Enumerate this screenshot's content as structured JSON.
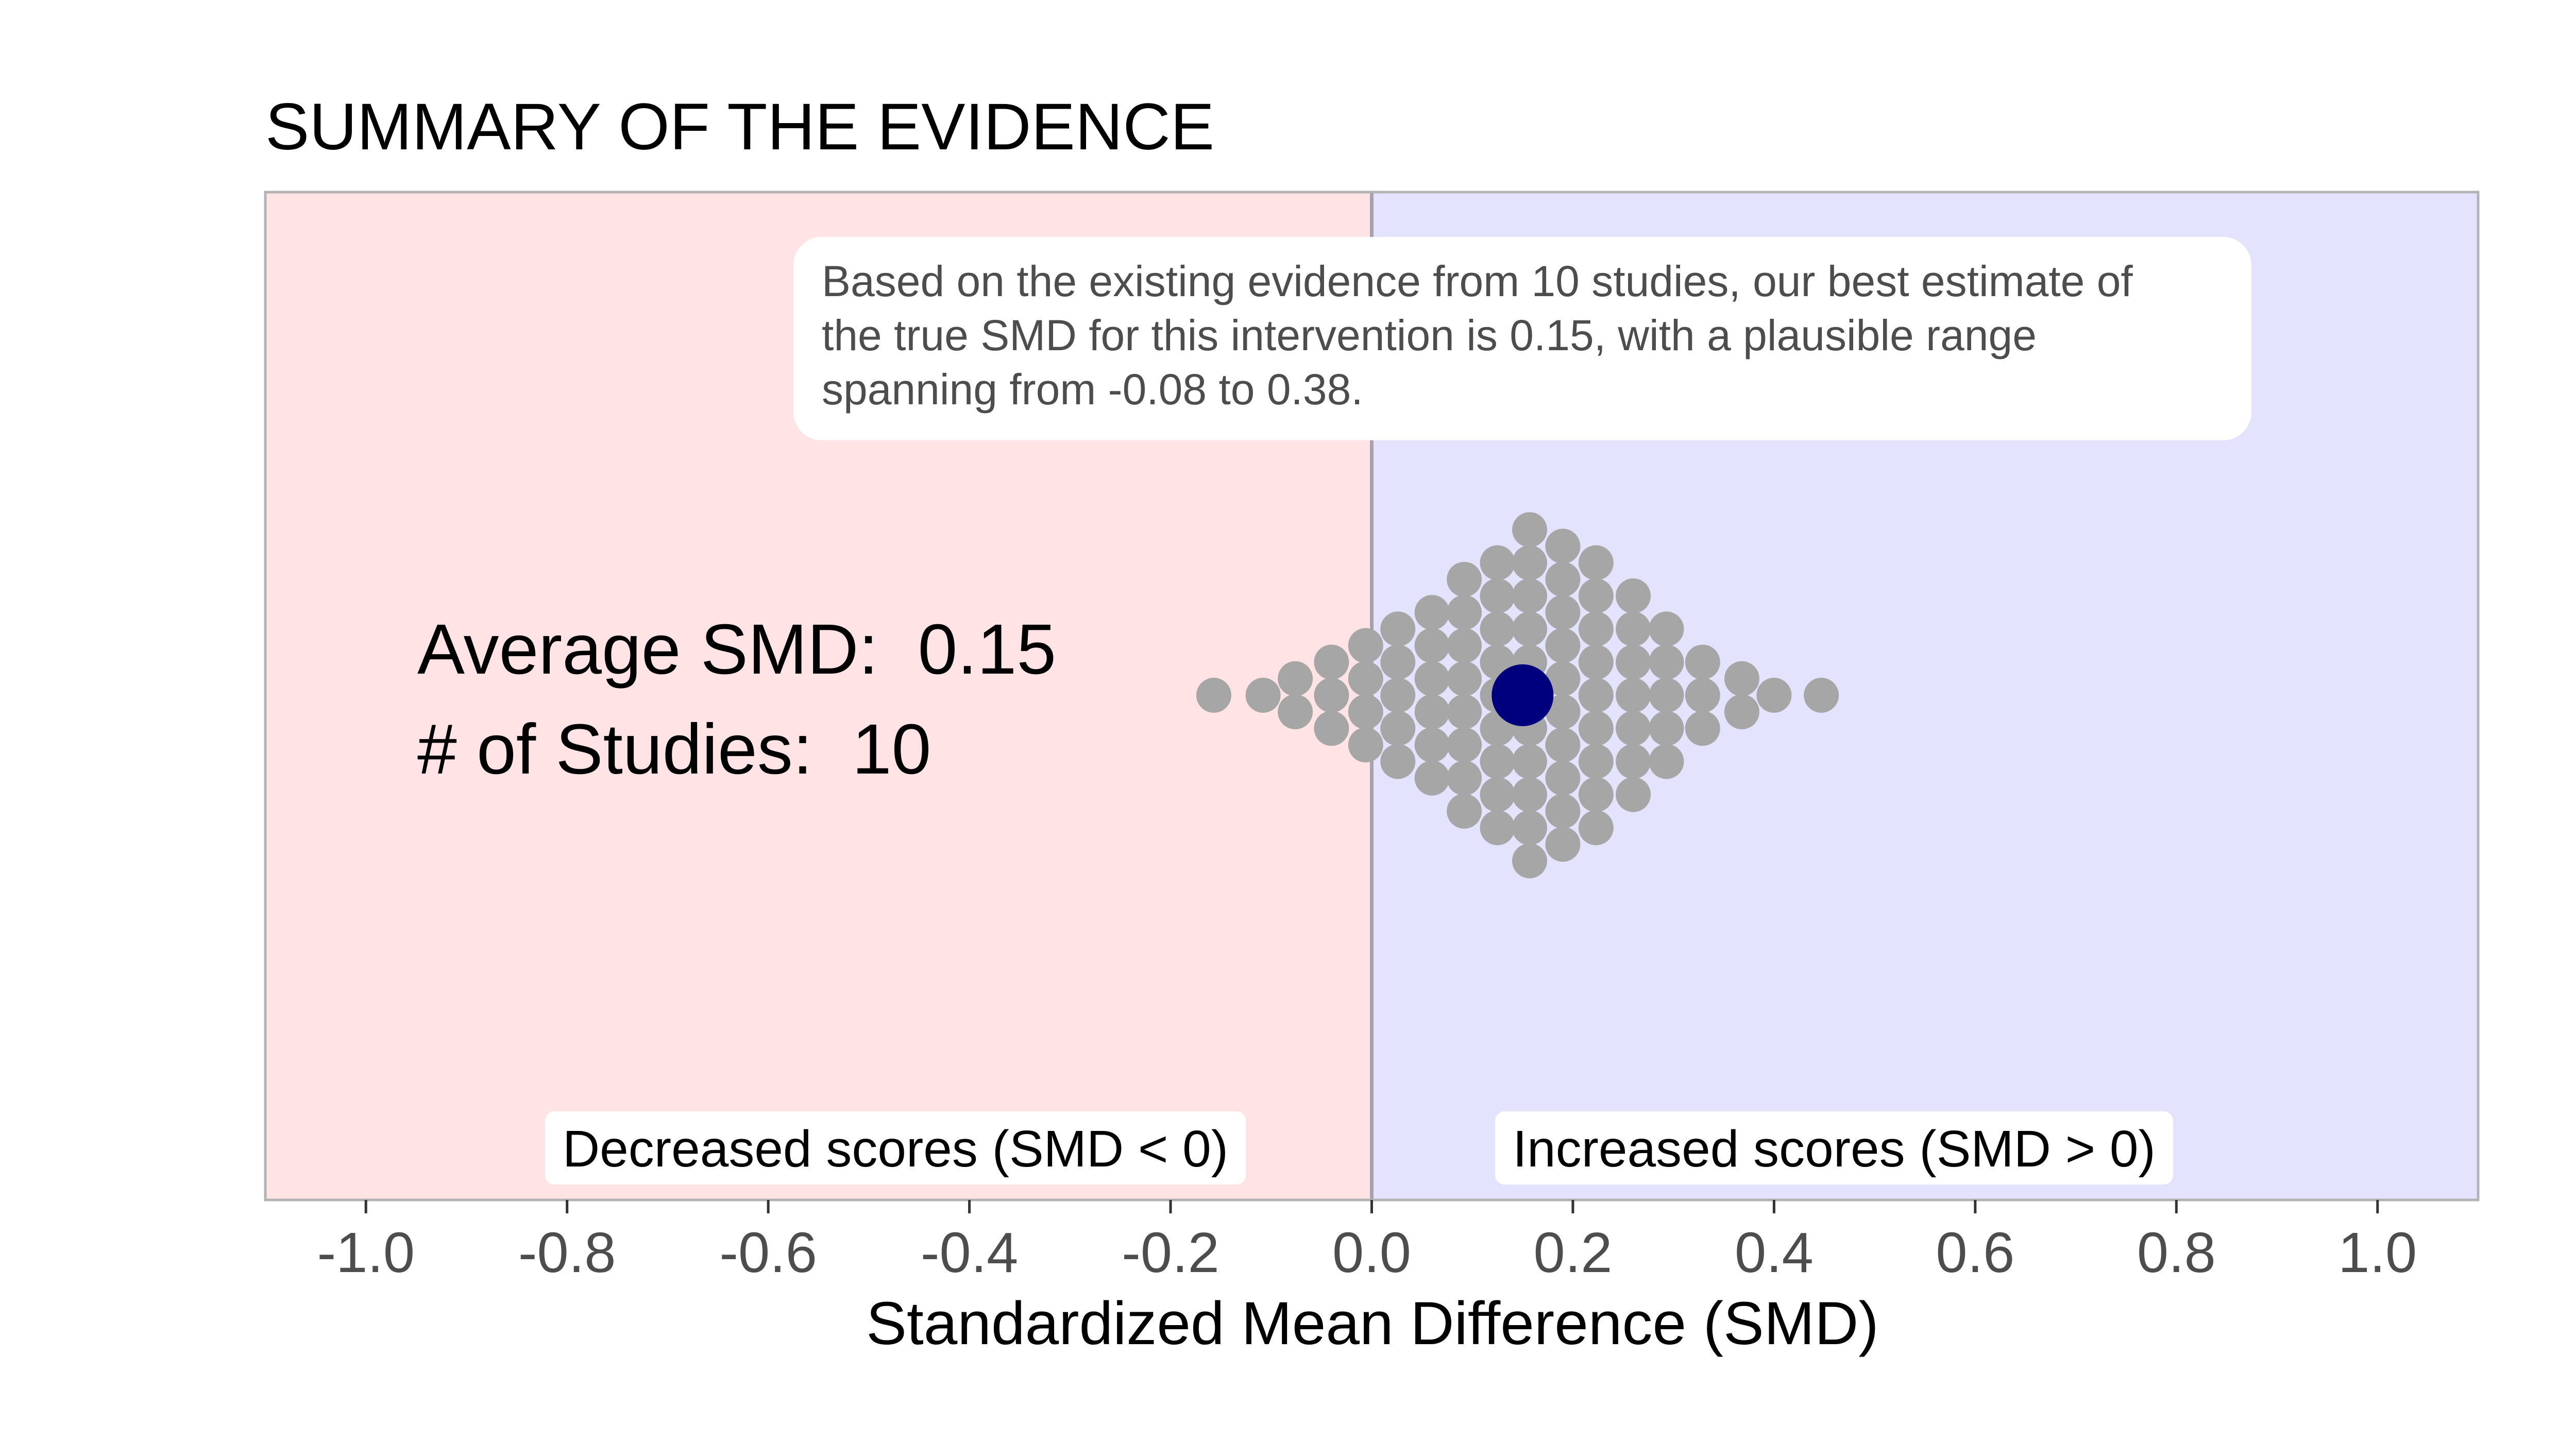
{
  "chart_data": {
    "type": "scatter",
    "title": "SUMMARY OF THE EVIDENCE",
    "xlabel": "Standardized Mean Difference (SMD)",
    "ylabel": "",
    "xlim": [
      -1.1,
      1.1
    ],
    "x_ticks": [
      -1.0,
      -0.8,
      -0.6,
      -0.4,
      -0.2,
      0.0,
      0.2,
      0.4,
      0.6,
      0.8,
      1.0
    ],
    "x_tick_labels": [
      "-1.0",
      "-0.8",
      "-0.6",
      "-0.4",
      "-0.2",
      "0.0",
      "0.2",
      "0.4",
      "0.6",
      "0.8",
      "1.0"
    ],
    "grid": false,
    "reference_line_x": 0.0,
    "regions": [
      {
        "name": "decreased",
        "from": -1.1,
        "to": 0.0,
        "color": "#ffe3e5",
        "label": "Decreased scores (SMD < 0)"
      },
      {
        "name": "increased",
        "from": 0.0,
        "to": 1.1,
        "color": "#e3e3fe",
        "label": "Increased scores (SMD > 0)"
      }
    ],
    "callout": {
      "lines": [
        "Based on the existing evidence from 10 studies, our best estimate of",
        "the true SMD for this intervention is 0.15, with a plausible range",
        "spanning from -0.08 to 0.38."
      ]
    },
    "stats": {
      "average_label": "Average SMD:  0.15",
      "studies_label": "# of Studies:  10"
    },
    "estimate": {
      "x": 0.15,
      "color": "#00007f"
    },
    "dot_color": "#a6a6a6",
    "dots": {
      "columns": [
        {
          "x": -0.157,
          "count": 1
        },
        {
          "x": -0.108,
          "count": 1
        },
        {
          "x": -0.076,
          "count": 2
        },
        {
          "x": -0.04,
          "count": 3
        },
        {
          "x": -0.006,
          "count": 4
        },
        {
          "x": 0.026,
          "count": 5
        },
        {
          "x": 0.06,
          "count": 6
        },
        {
          "x": 0.092,
          "count": 8
        },
        {
          "x": 0.125,
          "count": 9
        },
        {
          "x": 0.157,
          "count": 11
        },
        {
          "x": 0.19,
          "count": 10
        },
        {
          "x": 0.223,
          "count": 9
        },
        {
          "x": 0.26,
          "count": 7
        },
        {
          "x": 0.293,
          "count": 5
        },
        {
          "x": 0.329,
          "count": 3
        },
        {
          "x": 0.368,
          "count": 2
        },
        {
          "x": 0.4,
          "count": 1
        },
        {
          "x": 0.447,
          "count": 1
        }
      ]
    }
  }
}
